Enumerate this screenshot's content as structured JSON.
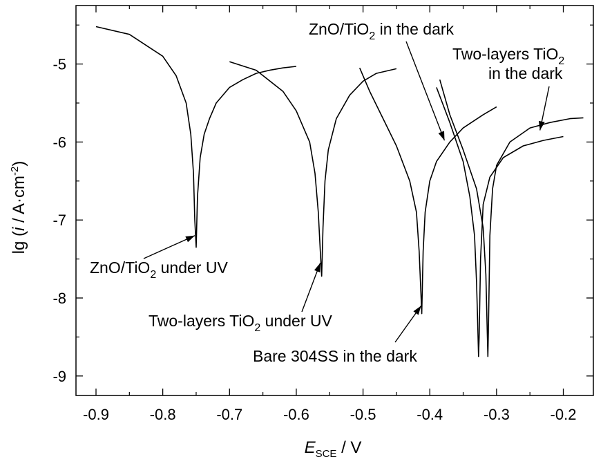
{
  "chart_data": {
    "type": "line",
    "title": "",
    "xlabel": {
      "main": "E",
      "sub": "SCE",
      "rest": " / V"
    },
    "ylabel": {
      "pre": "lg (",
      "ital": "i",
      "mid": " / A·cm",
      "sup": "-2",
      "post": ")"
    },
    "xlim": [
      -0.93,
      -0.155
    ],
    "ylim": [
      -9.25,
      -4.25
    ],
    "xticks": [
      -0.9,
      -0.8,
      -0.7,
      -0.6,
      -0.5,
      -0.4,
      -0.3,
      -0.2
    ],
    "xtick_labels": [
      "-0.9",
      "-0.8",
      "-0.7",
      "-0.6",
      "-0.5",
      "-0.4",
      "-0.3",
      "-0.2"
    ],
    "yticks": [
      -9,
      -8,
      -7,
      -6,
      -5
    ],
    "ytick_labels": [
      "-9",
      "-8",
      "-7",
      "-6",
      "-5"
    ],
    "grid": false,
    "legend": "none",
    "series": [
      {
        "name": "ZnO/TiO2 under UV",
        "x": [
          -0.9,
          -0.85,
          -0.8,
          -0.78,
          -0.765,
          -0.758,
          -0.754,
          -0.752,
          -0.75,
          -0.748,
          -0.744,
          -0.738,
          -0.73,
          -0.72,
          -0.7,
          -0.68,
          -0.66,
          -0.64,
          -0.62,
          -0.6
        ],
        "y": [
          -4.52,
          -4.62,
          -4.9,
          -5.15,
          -5.5,
          -5.9,
          -6.4,
          -7.0,
          -7.35,
          -6.7,
          -6.2,
          -5.9,
          -5.7,
          -5.5,
          -5.3,
          -5.2,
          -5.12,
          -5.08,
          -5.05,
          -5.03
        ]
      },
      {
        "name": "Two-layers TiO2 under UV",
        "x": [
          -0.7,
          -0.66,
          -0.62,
          -0.6,
          -0.58,
          -0.572,
          -0.567,
          -0.564,
          -0.562,
          -0.56,
          -0.557,
          -0.552,
          -0.54,
          -0.52,
          -0.5,
          -0.48,
          -0.45
        ],
        "y": [
          -4.97,
          -5.08,
          -5.35,
          -5.6,
          -6.0,
          -6.4,
          -6.9,
          -7.4,
          -7.72,
          -7.1,
          -6.5,
          -6.1,
          -5.7,
          -5.4,
          -5.22,
          -5.12,
          -5.06
        ]
      },
      {
        "name": "Bare 304SS in the dark",
        "x": [
          -0.505,
          -0.49,
          -0.47,
          -0.45,
          -0.43,
          -0.42,
          -0.416,
          -0.414,
          -0.412,
          -0.41,
          -0.407,
          -0.4,
          -0.39,
          -0.37,
          -0.35,
          -0.32,
          -0.3
        ],
        "y": [
          -5.05,
          -5.35,
          -5.7,
          -6.05,
          -6.5,
          -6.9,
          -7.4,
          -7.8,
          -8.2,
          -7.4,
          -6.9,
          -6.5,
          -6.25,
          -6.0,
          -5.82,
          -5.65,
          -5.55
        ]
      },
      {
        "name": "ZnO/TiO2 in the dark",
        "x": [
          -0.39,
          -0.37,
          -0.35,
          -0.34,
          -0.333,
          -0.33,
          -0.328,
          -0.327,
          -0.326,
          -0.324,
          -0.32,
          -0.31,
          -0.29,
          -0.26,
          -0.23,
          -0.2
        ],
        "y": [
          -5.3,
          -5.75,
          -6.25,
          -6.7,
          -7.2,
          -7.8,
          -8.4,
          -8.75,
          -8.5,
          -7.5,
          -6.8,
          -6.45,
          -6.2,
          -6.05,
          -5.98,
          -5.93
        ]
      },
      {
        "name": "Two-layers TiO2 in the dark",
        "x": [
          -0.385,
          -0.37,
          -0.35,
          -0.33,
          -0.32,
          -0.316,
          -0.314,
          -0.313,
          -0.312,
          -0.31,
          -0.306,
          -0.3,
          -0.28,
          -0.25,
          -0.22,
          -0.19,
          -0.17
        ],
        "y": [
          -5.2,
          -5.65,
          -6.1,
          -6.6,
          -7.1,
          -7.7,
          -8.4,
          -8.75,
          -8.3,
          -7.2,
          -6.6,
          -6.3,
          -6.0,
          -5.82,
          -5.75,
          -5.7,
          -5.69
        ]
      }
    ],
    "annotations": [
      {
        "id": "zno-uv",
        "line1": [
          {
            "t": "ZnO/TiO"
          },
          {
            "t": "2",
            "sub": true
          },
          {
            "t": " under UV"
          }
        ],
        "line2": [],
        "arrow_to": [
          -0.752,
          -7.2
        ]
      },
      {
        "id": "tio2-uv",
        "line1": [
          {
            "t": "Two-layers TiO"
          },
          {
            "t": "2",
            "sub": true
          },
          {
            "t": " under UV"
          }
        ],
        "line2": [],
        "arrow_to": [
          -0.564,
          -7.55
        ]
      },
      {
        "id": "bare-dark",
        "line1": [
          {
            "t": "Bare 304SS in the dark"
          }
        ],
        "line2": [],
        "arrow_to": [
          -0.413,
          -8.1
        ]
      },
      {
        "id": "zno-dark",
        "line1": [
          {
            "t": "ZnO/TiO"
          },
          {
            "t": "2",
            "sub": true
          },
          {
            "t": " in the dark"
          }
        ],
        "line2": [],
        "arrow_to": [
          -0.378,
          -5.98
        ]
      },
      {
        "id": "tio2-dark",
        "line1": [
          {
            "t": "Two-layers TiO"
          },
          {
            "t": "2",
            "sub": true
          }
        ],
        "line2": [
          {
            "t": "in the dark"
          }
        ],
        "arrow_to": [
          -0.235,
          -5.85
        ]
      }
    ]
  }
}
